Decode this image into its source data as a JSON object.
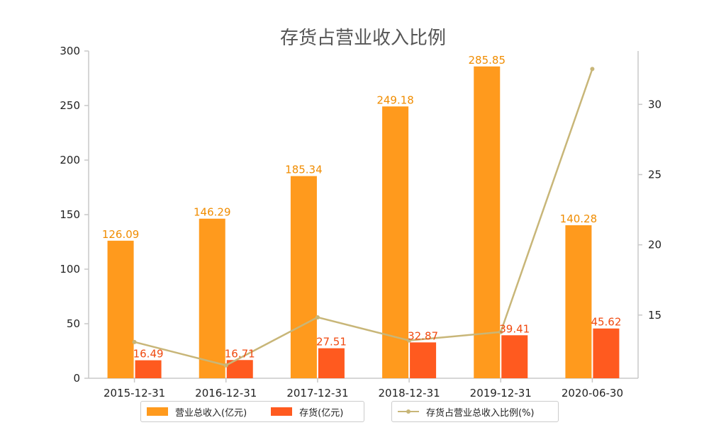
{
  "chart_data": {
    "type": "bar",
    "title": "存货占营业收入比例",
    "categories": [
      "2015-12-31",
      "2016-12-31",
      "2017-12-31",
      "2018-12-31",
      "2019-12-31",
      "2020-06-30"
    ],
    "series": [
      {
        "name": "营业总收入(亿元)",
        "type": "bar",
        "axis": "left",
        "color": "#FF9A1D",
        "values": [
          126.09,
          146.29,
          185.34,
          249.18,
          285.85,
          140.28
        ],
        "labels": [
          "126.09",
          "146.29",
          "185.34",
          "249.18",
          "285.85",
          "140.28"
        ]
      },
      {
        "name": "存货(亿元)",
        "type": "bar",
        "axis": "left",
        "color": "#FF5A1F",
        "values": [
          16.49,
          16.71,
          27.51,
          32.87,
          39.41,
          45.62
        ],
        "labels": [
          "16.49",
          "16.71",
          "27.51",
          "32.87",
          "39.41",
          "45.62"
        ]
      },
      {
        "name": "存货占营业总收入比例(%)",
        "type": "line",
        "axis": "right",
        "color": "#C8B678",
        "values": [
          13.08,
          11.42,
          14.84,
          13.19,
          13.79,
          32.52
        ]
      }
    ],
    "y_left": {
      "min": 0,
      "max": 300,
      "ticks": [
        "0",
        "50",
        "100",
        "150",
        "200",
        "250",
        "300"
      ]
    },
    "y_right": {
      "min": 10.5,
      "max": 33.8,
      "ticks": [
        "15",
        "20",
        "25",
        "30"
      ]
    },
    "legend_position": "bottom",
    "grid": false
  }
}
